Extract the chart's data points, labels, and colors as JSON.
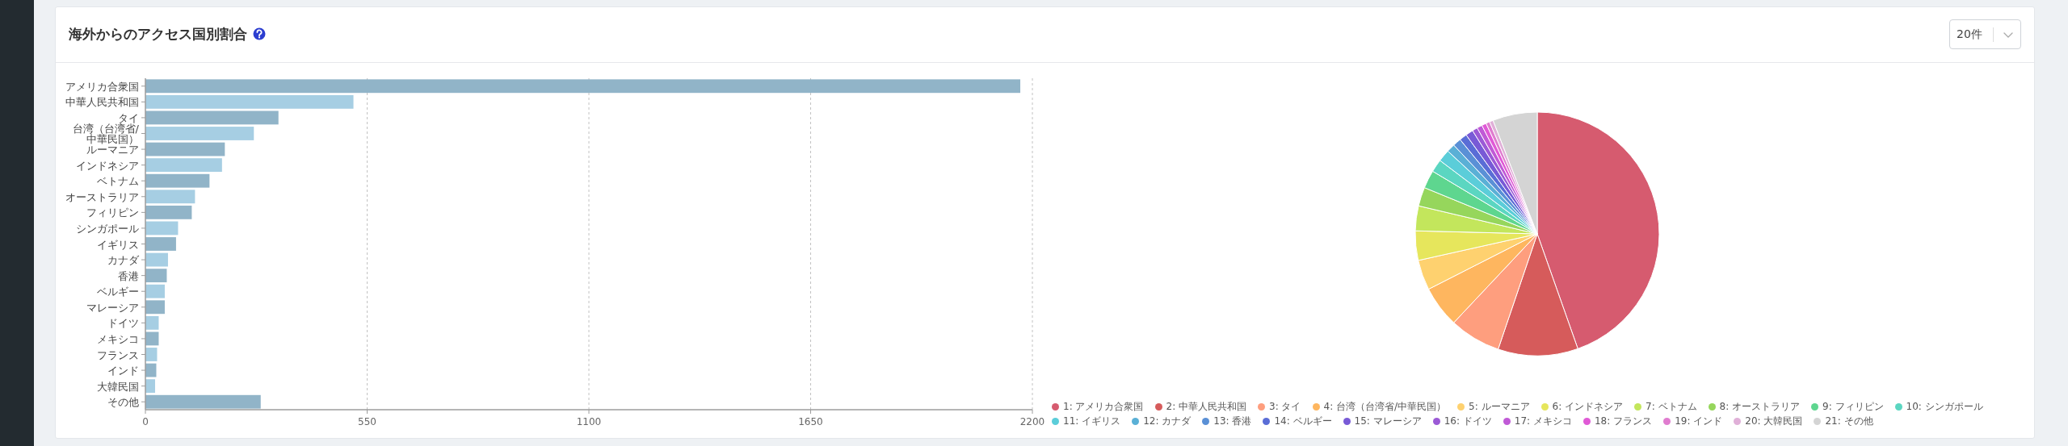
{
  "chart_data": [
    {
      "type": "bar",
      "orientation": "horizontal",
      "title": "海外からのアクセス国別割合",
      "categories": [
        "アメリカ合衆国",
        "中華人民共和国",
        "タイ",
        "台湾（台湾省/中華民国）",
        "ルーマニア",
        "インドネシア",
        "ベトナム",
        "オーストラリア",
        "フィリピン",
        "シンガポール",
        "イギリス",
        "カナダ",
        "香港",
        "ベルギー",
        "マレーシア",
        "ドイツ",
        "メキシコ",
        "フランス",
        "インド",
        "大韓民国",
        "その他"
      ],
      "values": [
        2170,
        516,
        330,
        269,
        197,
        190,
        159,
        123,
        115,
        81,
        76,
        56,
        53,
        48,
        48,
        33,
        33,
        29,
        27,
        24,
        286
      ],
      "colors": [
        "#91b4c8",
        "#a6cee3",
        "#91b4c8",
        "#a6cee3",
        "#91b4c8",
        "#a6cee3",
        "#91b4c8",
        "#a6cee3",
        "#91b4c8",
        "#a6cee3",
        "#91b4c8",
        "#a6cee3",
        "#91b4c8",
        "#a6cee3",
        "#91b4c8",
        "#a6cee3",
        "#91b4c8",
        "#a6cee3",
        "#91b4c8",
        "#a6cee3",
        "#91b4c8"
      ],
      "xlim": [
        0,
        2200
      ],
      "xticks": [
        0,
        550,
        1100,
        1650,
        2200
      ],
      "grid": "x"
    },
    {
      "type": "pie",
      "categories": [
        "1: アメリカ合衆国",
        "2: 中華人民共和国",
        "3: タイ",
        "4: 台湾（台湾省/中華民国）",
        "5: ルーマニア",
        "6: インドネシア",
        "7: ベトナム",
        "8: オーストラリア",
        "9: フィリピン",
        "10: シンガポール",
        "11: イギリス",
        "12: カナダ",
        "13: 香港",
        "14: ベルギー",
        "15: マレーシア",
        "16: ドイツ",
        "17: メキシコ",
        "18: フランス",
        "19: インド",
        "20: 大韓民国",
        "21: その他"
      ],
      "values": [
        44.6,
        10.6,
        6.8,
        5.5,
        4.0,
        3.9,
        3.3,
        2.5,
        2.4,
        1.7,
        1.6,
        1.1,
        1.1,
        1.0,
        1.0,
        0.7,
        0.7,
        0.6,
        0.5,
        0.5,
        5.9
      ],
      "colors": [
        "#d65b6f",
        "#d65b5b",
        "#fe9e7e",
        "#feb65f",
        "#fed16f",
        "#e6e65c",
        "#c3e65c",
        "#96d65c",
        "#5ed68f",
        "#5bd6c1",
        "#5bcdd9",
        "#5ab0d6",
        "#5a90d6",
        "#5a6dd6",
        "#785ad6",
        "#9b5ad6",
        "#c05ad6",
        "#e05ad6",
        "#e07ccf",
        "#e0b0d8",
        "#d4d4d4"
      ],
      "legend": "bottom",
      "annotations": [
        "20件"
      ]
    }
  ]
}
